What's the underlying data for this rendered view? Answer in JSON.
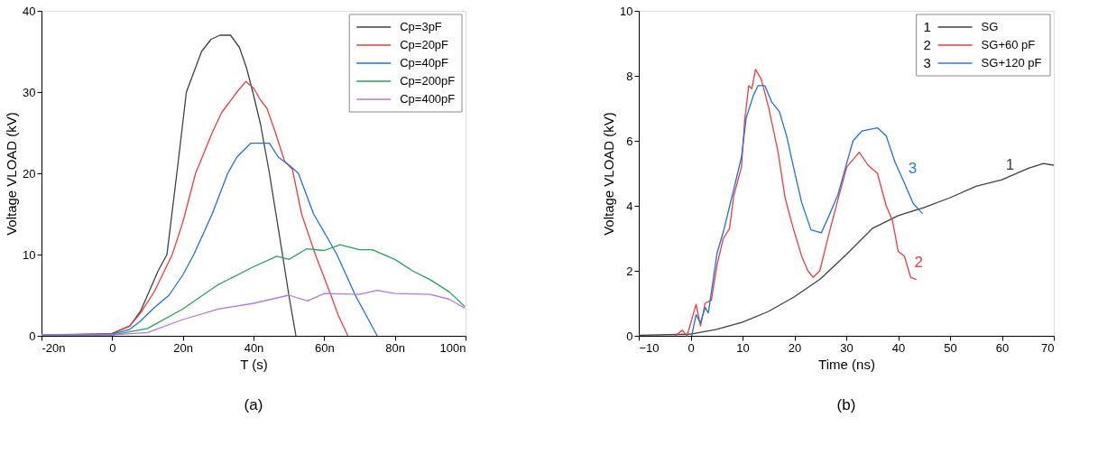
{
  "chart_data": [
    {
      "type": "line",
      "title": "(a)",
      "xlabel": "T (s)",
      "ylabel": "Voltage VLOAD (kV)",
      "xlim": [
        -20,
        100
      ],
      "ylim": [
        0,
        40
      ],
      "xticks": [
        {
          "value": -20,
          "label": "-20n"
        },
        0,
        {
          "value": 20,
          "label": "20n"
        },
        {
          "value": 40,
          "label": "40n"
        },
        {
          "value": 60,
          "label": "60n"
        },
        {
          "value": 80,
          "label": "80n"
        },
        {
          "value": 100,
          "label": "100n"
        }
      ],
      "yticks": [
        0,
        10,
        20,
        30,
        40
      ],
      "grid": false,
      "legend": "top right",
      "line_style": "solid",
      "marker": "none",
      "series": [
        {
          "name": "Cp=3pF",
          "color": "#404040",
          "x": [
            -20,
            -5,
            0,
            5,
            8,
            10,
            13,
            15.5,
            18.3,
            21,
            25.3,
            28,
            30.5,
            33.5,
            36,
            38,
            39.8,
            42,
            44.5,
            48.2,
            50,
            52
          ],
          "values": [
            0.1,
            0.1,
            0.3,
            1.2,
            3,
            5,
            8,
            10,
            20,
            30,
            35,
            36.5,
            37,
            37,
            35.5,
            33,
            30,
            26,
            20,
            10,
            5,
            0
          ]
        },
        {
          "name": "Cp=20pF",
          "color": "#f03c3c",
          "x": [
            -20,
            0,
            5,
            8,
            12,
            17,
            20,
            23.6,
            28.3,
            31,
            35.3,
            37.8,
            40,
            42,
            43.8,
            46.2,
            48.8,
            51,
            53.6,
            57.5,
            61.9,
            64,
            66.7
          ],
          "values": [
            0.1,
            0.3,
            1.2,
            2.8,
            5.5,
            10,
            14,
            20,
            25,
            27.5,
            30,
            31.3,
            30.5,
            29,
            28,
            25,
            21.5,
            20.5,
            15,
            10,
            5,
            2.5,
            0
          ]
        },
        {
          "name": "Cp=40pF",
          "color": "#1f6fe0",
          "x": [
            -20,
            0,
            5,
            8,
            12,
            16.1,
            20,
            23.1,
            28.3,
            32.7,
            35.3,
            39.2,
            44.5,
            47,
            50.1,
            52.7,
            57,
            61,
            63.6,
            68.8,
            75
          ],
          "values": [
            0.1,
            0.2,
            0.8,
            1.8,
            3.5,
            5,
            7.5,
            10,
            15,
            20,
            22,
            23.7,
            23.7,
            22,
            21,
            20,
            15,
            12,
            10,
            5,
            0
          ]
        },
        {
          "name": "Cp=200pF",
          "color": "#2e9e5e",
          "x": [
            -20,
            0,
            10,
            20,
            30,
            40,
            46.6,
            50,
            55,
            60,
            64.5,
            70,
            73.6,
            80,
            85,
            90,
            95.4,
            99.8
          ],
          "values": [
            0.1,
            0.1,
            0.9,
            3.3,
            6.3,
            8.5,
            9.8,
            9.4,
            10.7,
            10.5,
            11.2,
            10.6,
            10.6,
            9.4,
            8,
            6.9,
            5.4,
            3.6
          ]
        },
        {
          "name": "Cp=400pF",
          "color": "#b07ae0",
          "x": [
            -20,
            0,
            10,
            20,
            30,
            40,
            50,
            55.3,
            60,
            70,
            75,
            80,
            90,
            95.4,
            99.8
          ],
          "values": [
            0.1,
            0.1,
            0.4,
            2,
            3.3,
            4,
            5,
            4.3,
            5.2,
            5.1,
            5.6,
            5.2,
            5.1,
            4.5,
            3.4
          ]
        }
      ]
    },
    {
      "type": "line",
      "title": "(b)",
      "xlabel": "Time (ns)",
      "ylabel": "Voltage VLOAD (kV)",
      "xlim": [
        -10,
        70
      ],
      "ylim": [
        0,
        10
      ],
      "xticks": [
        -10,
        0,
        10,
        20,
        30,
        40,
        50,
        60,
        70
      ],
      "yticks": [
        0,
        2,
        4,
        6,
        8,
        10
      ],
      "grid": false,
      "legend": "top right",
      "line_style": "solid",
      "marker": "none",
      "series": [
        {
          "name": "SG",
          "color": "#404040",
          "x": [
            -10,
            0,
            5,
            10,
            15,
            20,
            25,
            30,
            35,
            40,
            45,
            50,
            55,
            60,
            65,
            68,
            70
          ],
          "values": [
            0.02,
            0.05,
            0.2,
            0.42,
            0.75,
            1.2,
            1.75,
            2.5,
            3.3,
            3.7,
            3.95,
            4.25,
            4.6,
            4.8,
            5.15,
            5.3,
            5.25
          ]
        },
        {
          "name": "SG+60 pF",
          "color": "#f03c3c",
          "x": [
            -3,
            -1.6,
            -0.7,
            1.05,
            1.9,
            2.8,
            4,
            5.1,
            6.3,
            7.5,
            8.3,
            9.8,
            10.4,
            11.2,
            11.8,
            12.5,
            13.6,
            15,
            16.8,
            18.2,
            19.7,
            21.4,
            22.6,
            23.6,
            24.9,
            26.6,
            28.4,
            30.1,
            32.5,
            34.2,
            36,
            37.7,
            38.9,
            40,
            41.2,
            42.4,
            43.5
          ],
          "values": [
            0,
            0.17,
            0,
            0.97,
            0.3,
            1,
            1.1,
            2.2,
            3,
            3.3,
            4.3,
            5.2,
            6.6,
            7.7,
            7.6,
            8.2,
            7.9,
            7.05,
            5.7,
            4.25,
            3.35,
            2.45,
            2,
            1.8,
            2,
            3.1,
            4.2,
            5.2,
            5.65,
            5.25,
            5,
            4,
            3.55,
            2.6,
            2.45,
            1.8,
            1.73
          ]
        },
        {
          "name": "SG+120 pF",
          "color": "#2f74e0",
          "x": [
            0.2,
            1.05,
            1.9,
            2.8,
            3.4,
            5.1,
            6.3,
            8.3,
            9.8,
            10.7,
            12.1,
            13,
            14.3,
            15.6,
            17.1,
            18.5,
            20,
            21.4,
            23.2,
            25.2,
            26.6,
            28.4,
            29.8,
            31.3,
            33,
            36,
            37.7,
            39.4,
            41.2,
            42.9,
            44.7
          ],
          "values": [
            0,
            0.65,
            0.4,
            0.87,
            0.7,
            2.55,
            3.2,
            4.5,
            5.5,
            6.7,
            7.4,
            7.7,
            7.7,
            7.2,
            6.9,
            6.15,
            5.07,
            4.1,
            3.26,
            3.17,
            3.67,
            4.35,
            5.15,
            6,
            6.3,
            6.4,
            6.15,
            5.34,
            4.7,
            4.07,
            3.76
          ]
        }
      ],
      "annotations": [
        {
          "text": "1",
          "x": 60,
          "y": 4.8
        },
        {
          "text": "2",
          "x": 42.4,
          "y": 1.8
        },
        {
          "text": "3",
          "x": 41.2,
          "y": 4.7
        }
      ]
    }
  ]
}
